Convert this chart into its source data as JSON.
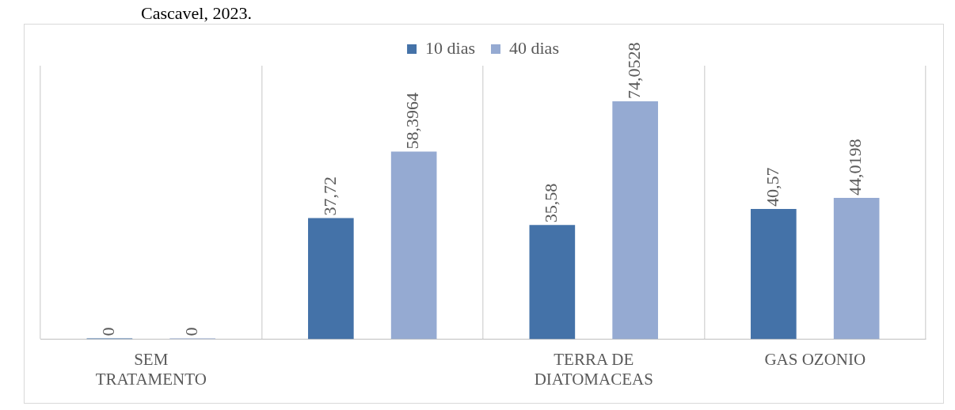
{
  "chart_data": {
    "type": "bar",
    "annotations": [
      "Cascavel, 2023."
    ],
    "categories": [
      "SEM TRATAMENTO",
      null,
      "TERRA DE DIATOMACEAS",
      "GAS OZONIO"
    ],
    "series": [
      {
        "name": "10 dias",
        "color": "#4472a8",
        "values": [
          0,
          37.72,
          35.58,
          40.57
        ],
        "value_labels": [
          "0",
          "37,72",
          "35,58",
          "40,57"
        ]
      },
      {
        "name": "40 dias",
        "color": "#95aad2",
        "values": [
          0,
          58.3964,
          74.0528,
          44.0198
        ],
        "value_labels": [
          "0",
          "58,3964",
          "74,0528",
          "44,0198"
        ]
      }
    ],
    "grid": "x",
    "legend": "top"
  }
}
